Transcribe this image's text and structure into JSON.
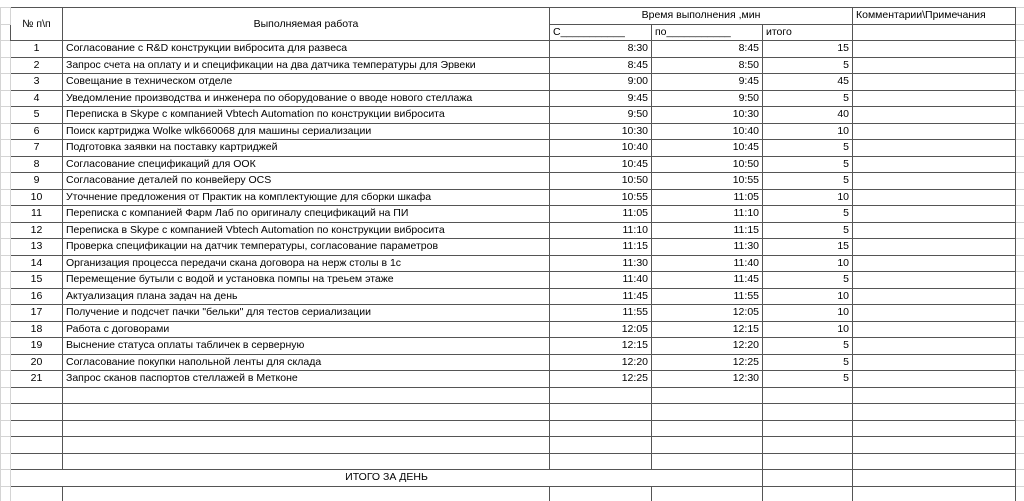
{
  "header": {
    "number": "№ п\\п",
    "work": "Выполняемая работа",
    "time": "Время выполнения ,мин",
    "from": "С___________",
    "to": "по___________",
    "total": "итого",
    "comments": "Комментарии\\Примечания"
  },
  "table": {
    "rows": [
      [
        "1",
        "Согласование с R&D конструкции вибросита для развеса",
        "8:30",
        "8:45",
        "15"
      ],
      [
        "2",
        "Запрос счета на оплату и и спецификации на два датчика температуры для Эрвеки",
        "8:45",
        "8:50",
        "5"
      ],
      [
        "3",
        "Совещание в техническом отделе",
        "9:00",
        "9:45",
        "45"
      ],
      [
        "4",
        "Уведомление производства и инженера по оборудование о вводе нового стеллажа",
        "9:45",
        "9:50",
        "5"
      ],
      [
        "5",
        "Переписка в Skype с компанией Vbtech Automation по конструкции вибросита",
        "9:50",
        "10:30",
        "40"
      ],
      [
        "6",
        "Поиск картриджа Wolke wlk660068 для машины сериализации",
        "10:30",
        "10:40",
        "10"
      ],
      [
        "7",
        "Подготовка заявки на поставку картриджей",
        "10:40",
        "10:45",
        "5"
      ],
      [
        "8",
        "Согласование спецификаций для ООК",
        "10:45",
        "10:50",
        "5"
      ],
      [
        "9",
        "Согласование деталей по конвейеру OCS",
        "10:50",
        "10:55",
        "5"
      ],
      [
        "10",
        "Уточнение предложения от Практик на комплектующие для сборки шкафа",
        "10:55",
        "11:05",
        "10"
      ],
      [
        "11",
        "Переписка с компанией Фарм Лаб по оригиналу спецификаций на ПИ",
        "11:05",
        "11:10",
        "5"
      ],
      [
        "12",
        "Переписка в Skype с компанией Vbtech Automation по конструкции вибросита",
        "11:10",
        "11:15",
        "5"
      ],
      [
        "13",
        "Проверка спецификации на датчик температуры, согласование параметров",
        "11:15",
        "11:30",
        "15"
      ],
      [
        "14",
        "Организация процесса передачи скана договора на нерж столы в 1с",
        "11:30",
        "11:40",
        "10"
      ],
      [
        "15",
        "Перемещение бутыли с водой и установка помпы на треьем этаже",
        "11:40",
        "11:45",
        "5"
      ],
      [
        "16",
        "Актуализация плана задач на день",
        "11:45",
        "11:55",
        "10"
      ],
      [
        "17",
        "Получение и подсчет пачки \"бельки\" для тестов сериализации",
        "11:55",
        "12:05",
        "10"
      ],
      [
        "18",
        "Работа с договорами",
        "12:05",
        "12:15",
        "10"
      ],
      [
        "19",
        "Выснение статуса оплаты табличек в серверную",
        "12:15",
        "12:20",
        "5"
      ],
      [
        "20",
        "Согласование покупки напольной ленты для склада",
        "12:20",
        "12:25",
        "5"
      ],
      [
        "21",
        "Запрос сканов паспортов стеллажей в Метконе",
        "12:25",
        "12:30",
        "5"
      ]
    ]
  },
  "footer": {
    "total_label": "ИТОГО ЗА ДЕНЬ"
  }
}
